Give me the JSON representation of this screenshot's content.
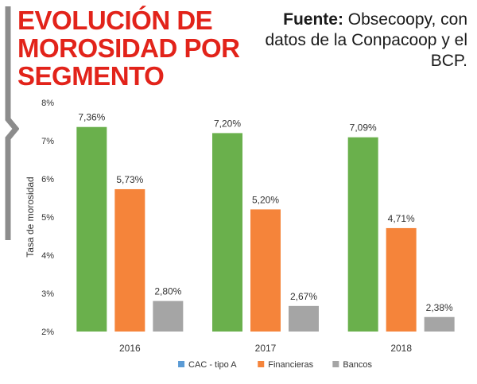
{
  "title": "EVOLUCIÓN DE MOROSIDAD POR SEGMENTO",
  "source": {
    "label": "Fuente:",
    "text": "Obsecoopy, con datos de la Conpacoop y el BCP."
  },
  "colors": {
    "title": "#e2231a",
    "bracket": "#8c8c8c"
  },
  "chart_data": {
    "type": "bar",
    "title": "EVOLUCIÓN DE MOROSIDAD POR SEGMENTO",
    "xlabel": "",
    "ylabel": "Tasa de morosidad",
    "ylim": [
      2,
      8
    ],
    "yticks": [
      {
        "value": 2,
        "label": "2%"
      },
      {
        "value": 3,
        "label": "3%"
      },
      {
        "value": 4,
        "label": "4%"
      },
      {
        "value": 5,
        "label": "5%"
      },
      {
        "value": 6,
        "label": "6%"
      },
      {
        "value": 7,
        "label": "7%"
      },
      {
        "value": 8,
        "label": "8%"
      }
    ],
    "categories": [
      "2016",
      "2017",
      "2018"
    ],
    "series": [
      {
        "name": "CAC - tipo A",
        "color": "#6ab04c",
        "legend_color": "#5b9bd5",
        "values": [
          7.36,
          7.2,
          7.09
        ],
        "labels": [
          "7,36%",
          "7,20%",
          "7,09%"
        ]
      },
      {
        "name": "Financieras",
        "color": "#f5843a",
        "legend_color": "#f5843a",
        "values": [
          5.73,
          5.2,
          4.71
        ],
        "labels": [
          "5,73%",
          "5,20%",
          "4,71%"
        ]
      },
      {
        "name": "Bancos",
        "color": "#a5a5a5",
        "legend_color": "#a5a5a5",
        "values": [
          2.8,
          2.67,
          2.38
        ],
        "labels": [
          "2,80%",
          "2,67%",
          "2,38%"
        ]
      }
    ],
    "legend_position": "bottom"
  }
}
